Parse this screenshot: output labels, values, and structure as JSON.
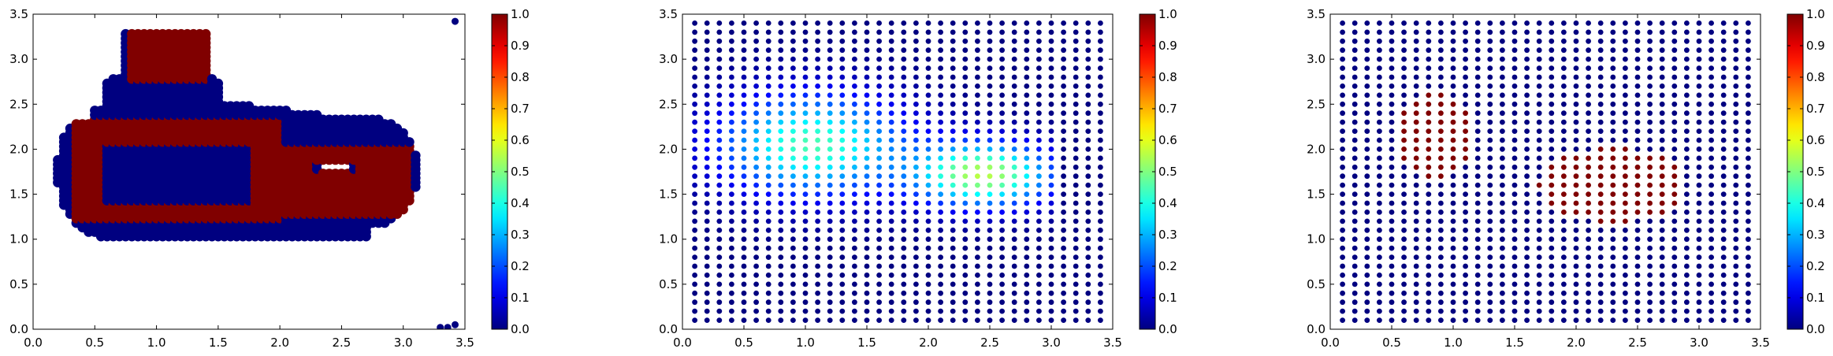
{
  "chart_data": [
    {
      "type": "scatter",
      "title": "",
      "xlabel": "",
      "ylabel": "",
      "xlim": [
        0,
        3.5
      ],
      "ylim": [
        0,
        3.5
      ],
      "xticks": [
        "0.0",
        "0.5",
        "1.0",
        "1.5",
        "2.0",
        "2.5",
        "3.0",
        "3.5"
      ],
      "yticks": [
        "0.0",
        "0.5",
        "1.0",
        "1.5",
        "2.0",
        "2.5",
        "3.0",
        "3.5"
      ],
      "colormap": "jet",
      "colorbar": {
        "vmin": 0,
        "vmax": 1,
        "ticks": [
          "0.0",
          "0.1",
          "0.2",
          "0.3",
          "0.4",
          "0.5",
          "0.6",
          "0.7",
          "0.8",
          "0.9",
          "1.0"
        ]
      },
      "grid": false,
      "marker_size": "large",
      "description": "Dense point cloud: blob of value 0 (blue) containing band regions of value 1 (dark red)",
      "regions": [
        {
          "shape": "blob",
          "value": 0,
          "x_range": [
            0.2,
            3.1
          ],
          "y_range": [
            1.0,
            2.6
          ]
        },
        {
          "shape": "blob",
          "value": 0,
          "x_range": [
            0.75,
            1.45
          ],
          "y_range": [
            2.3,
            3.1
          ]
        },
        {
          "shape": "ring",
          "value": 1,
          "x_range": [
            0.35,
            2.05
          ],
          "y_range": [
            1.2,
            2.35
          ],
          "inner_x_range": [
            0.6,
            1.8
          ],
          "inner_y_range": [
            1.4,
            2.05
          ]
        },
        {
          "shape": "ring",
          "value": 1,
          "x_range": [
            1.85,
            3.05
          ],
          "y_range": [
            1.25,
            2.05
          ],
          "inner_x_range": [
            2.3,
            2.6
          ],
          "inner_y_range": [
            1.75,
            1.85
          ]
        },
        {
          "shape": "rect",
          "value": 1,
          "x_range": [
            0.8,
            1.45
          ],
          "y_range": [
            2.75,
            3.3
          ]
        }
      ],
      "isolated_points": [
        {
          "x": 3.42,
          "y": 3.42,
          "value": 0
        },
        {
          "x": 3.3,
          "y": 0.02,
          "value": 0
        },
        {
          "x": 3.36,
          "y": 0.02,
          "value": 0
        },
        {
          "x": 3.42,
          "y": 0.05,
          "value": 0
        }
      ]
    },
    {
      "type": "scatter",
      "title": "",
      "xlabel": "",
      "ylabel": "",
      "xlim": [
        0,
        3.5
      ],
      "ylim": [
        0,
        3.5
      ],
      "xticks": [
        "0.0",
        "0.5",
        "1.0",
        "1.5",
        "2.0",
        "2.5",
        "3.0",
        "3.5"
      ],
      "yticks": [
        "0.0",
        "0.5",
        "1.0",
        "1.5",
        "2.0",
        "2.5",
        "3.0",
        "3.5"
      ],
      "colormap": "jet",
      "colorbar": {
        "vmin": 0,
        "vmax": 1,
        "ticks": [
          "0.0",
          "0.1",
          "0.2",
          "0.3",
          "0.4",
          "0.5",
          "0.6",
          "0.7",
          "0.8",
          "0.9",
          "1.0"
        ]
      },
      "grid": false,
      "grid_points": {
        "x_start": 0.1,
        "x_end": 3.4,
        "y_start": 0.1,
        "y_end": 3.4,
        "step": 0.1
      },
      "field": "smooth",
      "field_peaks": [
        {
          "x": 1.05,
          "y": 2.05,
          "sx": 0.75,
          "sy": 0.55,
          "amp": 0.45
        },
        {
          "x": 2.45,
          "y": 1.72,
          "sx": 0.55,
          "sy": 0.35,
          "amp": 0.55
        }
      ],
      "field_extent": {
        "x_range": [
          0.1,
          3.1
        ],
        "y_range": [
          0.9,
          3.45
        ]
      },
      "max_value": 0.68
    },
    {
      "type": "scatter",
      "title": "",
      "xlabel": "",
      "ylabel": "",
      "xlim": [
        0,
        3.5
      ],
      "ylim": [
        0,
        3.5
      ],
      "xticks": [
        "0.0",
        "0.5",
        "1.0",
        "1.5",
        "2.0",
        "2.5",
        "3.0",
        "3.5"
      ],
      "yticks": [
        "0.0",
        "0.5",
        "1.0",
        "1.5",
        "2.0",
        "2.5",
        "3.0",
        "3.5"
      ],
      "colormap": "jet",
      "colorbar": {
        "vmin": 0,
        "vmax": 1,
        "ticks": [
          "0.0",
          "0.1",
          "0.2",
          "0.3",
          "0.4",
          "0.5",
          "0.6",
          "0.7",
          "0.8",
          "0.9",
          "1.0"
        ]
      },
      "grid": false,
      "grid_points": {
        "x_start": 0.1,
        "x_end": 3.4,
        "y_start": 0.1,
        "y_end": 3.4,
        "step": 0.1
      },
      "base_value": 0,
      "high_regions": [
        {
          "value": 1,
          "cx": 0.85,
          "cy": 2.15,
          "rx": 0.33,
          "ry": 0.47
        },
        {
          "value": 1,
          "cx": 2.3,
          "cy": 1.6,
          "rx": 0.6,
          "ry": 0.42
        }
      ]
    }
  ]
}
